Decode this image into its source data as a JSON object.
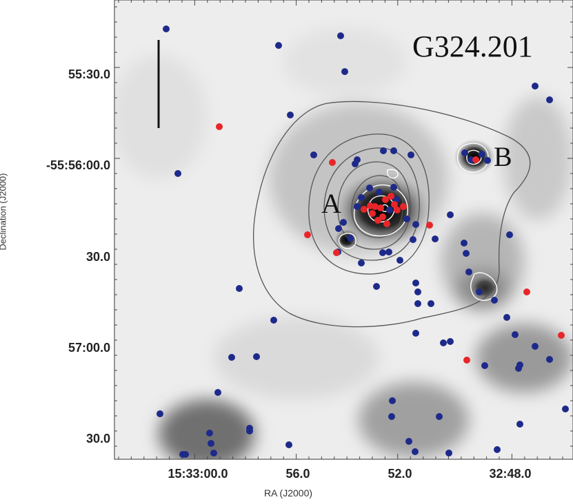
{
  "plot": {
    "source_name": "G324.201",
    "clump_labels": [
      "A",
      "B"
    ],
    "x_axis_title": "RA (J2000)",
    "y_axis_title": "Declination (J2000)",
    "x_tick_labels": [
      "15:33:00.0",
      "56.0",
      "52.0",
      "32:48.0"
    ],
    "y_tick_labels": [
      "55:30.0",
      "-55:56:00.0",
      "30.0",
      "57:00.0",
      "30.0"
    ]
  },
  "colors": {
    "blue_source": "#1e2a8a",
    "red_source": "#e8262a",
    "background": "#ededed",
    "outer_contour": "#555555",
    "inner_contour": "#ffffff"
  }
}
